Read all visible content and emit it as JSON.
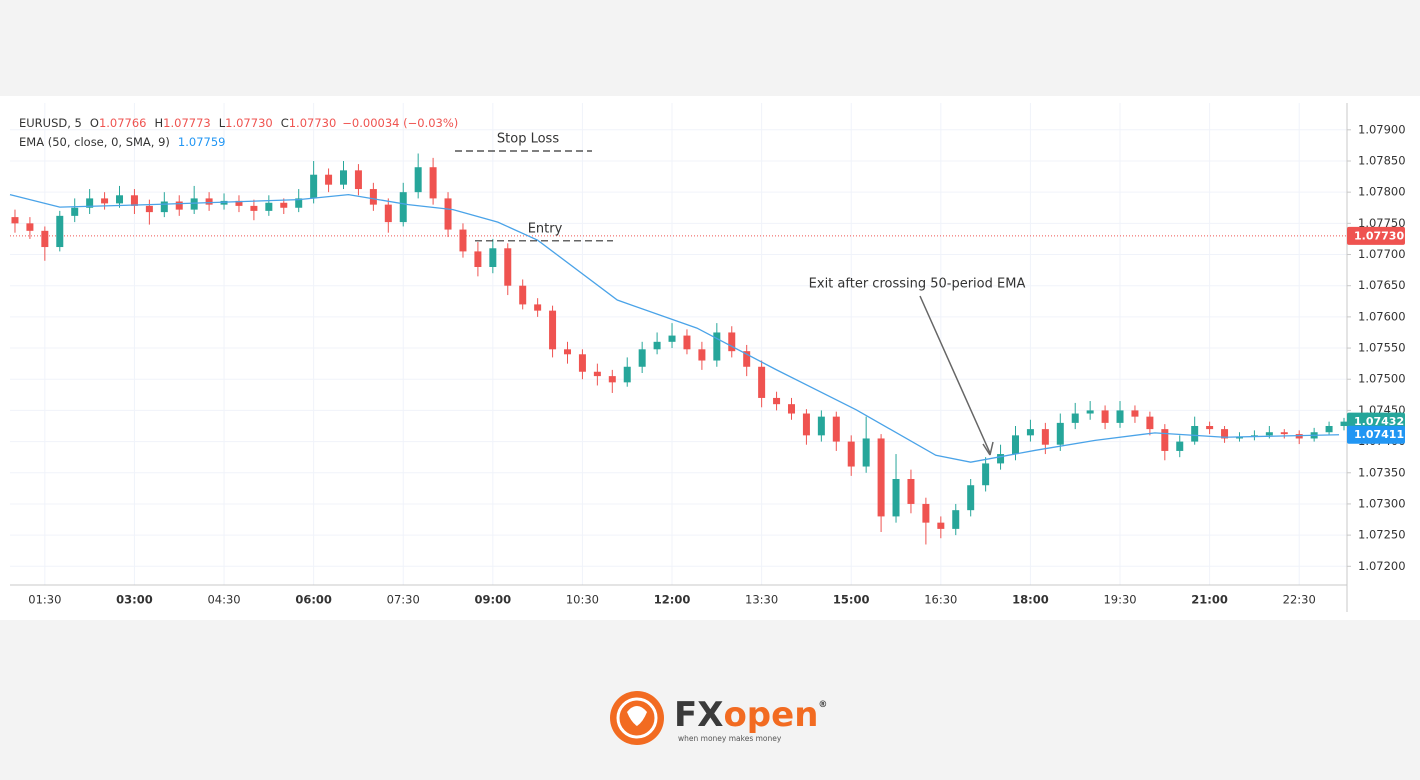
{
  "chart_data": {
    "type": "candlestick",
    "legend": {
      "symbol": "EURUSD, 5",
      "fields": [
        {
          "label": "O",
          "value": "1.07766"
        },
        {
          "label": "H",
          "value": "1.07773"
        },
        {
          "label": "L",
          "value": "1.07730"
        },
        {
          "label": "C",
          "value": "1.07730"
        }
      ],
      "change": "−0.00034 (−0.03%)"
    },
    "indicator": {
      "label": "EMA (50, close, 0, SMA, 9)",
      "value": "1.07759"
    },
    "up_color": "#26a69a",
    "down_color": "#ef5350",
    "ema_color": "#4aa3e8",
    "xlim": [
      55,
      1398
    ],
    "xticks": [
      {
        "value": 90,
        "label": "01:30"
      },
      {
        "value": 180,
        "label": "03:00"
      },
      {
        "value": 270,
        "label": "04:30"
      },
      {
        "value": 360,
        "label": "06:00"
      },
      {
        "value": 450,
        "label": "07:30"
      },
      {
        "value": 540,
        "label": "09:00"
      },
      {
        "value": 630,
        "label": "10:30"
      },
      {
        "value": 720,
        "label": "12:00"
      },
      {
        "value": 810,
        "label": "13:30"
      },
      {
        "value": 900,
        "label": "15:00"
      },
      {
        "value": 990,
        "label": "16:30"
      },
      {
        "value": 1080,
        "label": "18:00"
      },
      {
        "value": 1170,
        "label": "19:30"
      },
      {
        "value": 1260,
        "label": "21:00"
      },
      {
        "value": 1350,
        "label": "22:30"
      }
    ],
    "ylim": [
      1.0717,
      1.07943
    ],
    "yticks": [
      {
        "value": 1.072,
        "label": "1.07200"
      },
      {
        "value": 1.0725,
        "label": "1.07250"
      },
      {
        "value": 1.073,
        "label": "1.07300"
      },
      {
        "value": 1.0735,
        "label": "1.07350"
      },
      {
        "value": 1.074,
        "label": "1.07400"
      },
      {
        "value": 1.0745,
        "label": "1.07450"
      },
      {
        "value": 1.075,
        "label": "1.07500"
      },
      {
        "value": 1.0755,
        "label": "1.07550"
      },
      {
        "value": 1.076,
        "label": "1.07600"
      },
      {
        "value": 1.0765,
        "label": "1.07650"
      },
      {
        "value": 1.077,
        "label": "1.07700"
      },
      {
        "value": 1.0775,
        "label": "1.07750"
      },
      {
        "value": 1.078,
        "label": "1.07800"
      },
      {
        "value": 1.0785,
        "label": "1.07850"
      },
      {
        "value": 1.079,
        "label": "1.07900"
      }
    ],
    "grid": true,
    "candles": {
      "x": [
        60,
        75,
        90,
        105,
        120,
        135,
        150,
        165,
        180,
        195,
        210,
        225,
        240,
        255,
        270,
        285,
        300,
        315,
        330,
        345,
        360,
        375,
        390,
        405,
        420,
        435,
        450,
        465,
        480,
        495,
        510,
        525,
        540,
        555,
        570,
        585,
        600,
        615,
        630,
        645,
        660,
        675,
        690,
        705,
        720,
        735,
        750,
        765,
        780,
        795,
        810,
        825,
        840,
        855,
        870,
        885,
        900,
        915,
        930,
        945,
        960,
        975,
        990,
        1005,
        1020,
        1035,
        1050,
        1065,
        1080,
        1095,
        1110,
        1125,
        1140,
        1155,
        1170,
        1185,
        1200,
        1215,
        1230,
        1245,
        1260,
        1275,
        1290,
        1305,
        1320,
        1335,
        1350,
        1365,
        1380,
        1395
      ],
      "open": [
        1.0776,
        1.0775,
        1.07738,
        1.07712,
        1.07762,
        1.07775,
        1.0779,
        1.07782,
        1.07795,
        1.07778,
        1.07768,
        1.07785,
        1.07772,
        1.0779,
        1.0778,
        1.07786,
        1.07778,
        1.0777,
        1.07783,
        1.07775,
        1.0779,
        1.07828,
        1.07812,
        1.07835,
        1.07805,
        1.0778,
        1.07752,
        1.078,
        1.0784,
        1.0779,
        1.0774,
        1.07705,
        1.0768,
        1.0771,
        1.0765,
        1.0762,
        1.0761,
        1.07548,
        1.0754,
        1.07512,
        1.07505,
        1.07495,
        1.0752,
        1.07548,
        1.0756,
        1.0757,
        1.07548,
        1.0753,
        1.07575,
        1.07545,
        1.0752,
        1.0747,
        1.0746,
        1.07445,
        1.0741,
        1.0744,
        1.074,
        1.0736,
        1.07405,
        1.0728,
        1.0734,
        1.073,
        1.0727,
        1.0726,
        1.0729,
        1.0733,
        1.07365,
        1.0738,
        1.0741,
        1.0742,
        1.07395,
        1.0743,
        1.07445,
        1.0745,
        1.0743,
        1.0745,
        1.0744,
        1.0742,
        1.07385,
        1.074,
        1.07425,
        1.0742,
        1.07405,
        1.07408,
        1.0741,
        1.07415,
        1.07412,
        1.07405,
        1.07415,
        1.07425
      ],
      "high": [
        1.07772,
        1.0776,
        1.07745,
        1.0777,
        1.0779,
        1.07805,
        1.078,
        1.0781,
        1.07805,
        1.07788,
        1.078,
        1.07795,
        1.0781,
        1.078,
        1.07798,
        1.07795,
        1.07788,
        1.07795,
        1.0779,
        1.07805,
        1.0785,
        1.07838,
        1.0785,
        1.07845,
        1.07815,
        1.0779,
        1.07815,
        1.07862,
        1.07855,
        1.078,
        1.0775,
        1.0772,
        1.07725,
        1.07718,
        1.0766,
        1.0763,
        1.07618,
        1.0756,
        1.07548,
        1.07525,
        1.07515,
        1.07535,
        1.0756,
        1.07575,
        1.0759,
        1.0758,
        1.0756,
        1.0759,
        1.07585,
        1.07555,
        1.0753,
        1.0748,
        1.0747,
        1.07452,
        1.0745,
        1.07448,
        1.0741,
        1.0744,
        1.07412,
        1.0738,
        1.07355,
        1.0731,
        1.0728,
        1.073,
        1.0734,
        1.07375,
        1.07395,
        1.07425,
        1.07435,
        1.0743,
        1.07445,
        1.07462,
        1.07465,
        1.07458,
        1.07465,
        1.07458,
        1.07448,
        1.07428,
        1.0741,
        1.0744,
        1.07432,
        1.07425,
        1.07415,
        1.07418,
        1.07425,
        1.0742,
        1.07418,
        1.07422,
        1.07432,
        1.07438
      ],
      "low": [
        1.07735,
        1.07725,
        1.0769,
        1.07705,
        1.07752,
        1.07765,
        1.07772,
        1.07775,
        1.07765,
        1.07748,
        1.0776,
        1.07762,
        1.07765,
        1.0777,
        1.07772,
        1.07768,
        1.07755,
        1.07762,
        1.07765,
        1.07768,
        1.07782,
        1.078,
        1.07805,
        1.07795,
        1.0777,
        1.07735,
        1.07745,
        1.0779,
        1.0778,
        1.07728,
        1.07695,
        1.07665,
        1.0767,
        1.07635,
        1.07612,
        1.076,
        1.07535,
        1.07525,
        1.075,
        1.0749,
        1.07478,
        1.07488,
        1.0751,
        1.0754,
        1.0755,
        1.0754,
        1.07515,
        1.0752,
        1.07535,
        1.07505,
        1.07455,
        1.0745,
        1.07435,
        1.07395,
        1.074,
        1.07385,
        1.07345,
        1.0735,
        1.07255,
        1.0727,
        1.07285,
        1.07235,
        1.07245,
        1.0725,
        1.0728,
        1.0732,
        1.07355,
        1.0737,
        1.074,
        1.0738,
        1.07385,
        1.0742,
        1.07435,
        1.0742,
        1.07422,
        1.0743,
        1.0741,
        1.0737,
        1.07375,
        1.07395,
        1.07412,
        1.07398,
        1.074,
        1.07402,
        1.07405,
        1.07405,
        1.07396,
        1.074,
        1.0741,
        1.07418
      ],
      "close": [
        1.0775,
        1.07738,
        1.07712,
        1.07762,
        1.07775,
        1.0779,
        1.07782,
        1.07795,
        1.07778,
        1.07768,
        1.07785,
        1.07772,
        1.0779,
        1.0778,
        1.07786,
        1.07778,
        1.0777,
        1.07783,
        1.07775,
        1.0779,
        1.07828,
        1.07812,
        1.07835,
        1.07805,
        1.0778,
        1.07752,
        1.078,
        1.0784,
        1.0779,
        1.0774,
        1.07705,
        1.0768,
        1.0771,
        1.0765,
        1.0762,
        1.0761,
        1.07548,
        1.0754,
        1.07512,
        1.07505,
        1.07495,
        1.0752,
        1.07548,
        1.0756,
        1.0757,
        1.07548,
        1.0753,
        1.07575,
        1.07545,
        1.0752,
        1.0747,
        1.0746,
        1.07445,
        1.0741,
        1.0744,
        1.074,
        1.0736,
        1.07405,
        1.0728,
        1.0734,
        1.073,
        1.0727,
        1.0726,
        1.0729,
        1.0733,
        1.07365,
        1.0738,
        1.0741,
        1.0742,
        1.07395,
        1.0743,
        1.07445,
        1.0745,
        1.0743,
        1.0745,
        1.0744,
        1.0742,
        1.07385,
        1.074,
        1.07425,
        1.0742,
        1.07405,
        1.07408,
        1.0741,
        1.07415,
        1.07412,
        1.07405,
        1.07415,
        1.07425,
        1.07432
      ]
    },
    "ema": {
      "x": [
        55,
        105,
        195,
        345,
        395,
        455,
        500,
        545,
        585,
        665,
        745,
        825,
        905,
        985,
        1020,
        1085,
        1145,
        1205,
        1275,
        1390
      ],
      "values": [
        1.07796,
        1.07776,
        1.0778,
        1.07788,
        1.07796,
        1.0778,
        1.07772,
        1.07752,
        1.07723,
        1.07627,
        1.07582,
        1.07515,
        1.07451,
        1.07378,
        1.07367,
        1.07386,
        1.07402,
        1.07414,
        1.07407,
        1.07411
      ]
    },
    "price_line": 1.0773,
    "price_badges": [
      {
        "label": "1.07730",
        "value": 1.0773,
        "color": "#ef5350"
      },
      {
        "label": "1.07432",
        "value": 1.07432,
        "color": "#26a69a"
      },
      {
        "label": "1.07411",
        "value": 1.07411,
        "color": "#2196f3"
      }
    ],
    "levels": [
      {
        "label": "Stop Loss",
        "value": 1.07866
      },
      {
        "label": "Entry",
        "value": 1.07722
      }
    ],
    "annotation": "Exit after crossing 50-period EMA"
  },
  "brand": {
    "name_a": "FX",
    "name_b": "open",
    "mark": "®",
    "tagline": "when money makes money"
  }
}
